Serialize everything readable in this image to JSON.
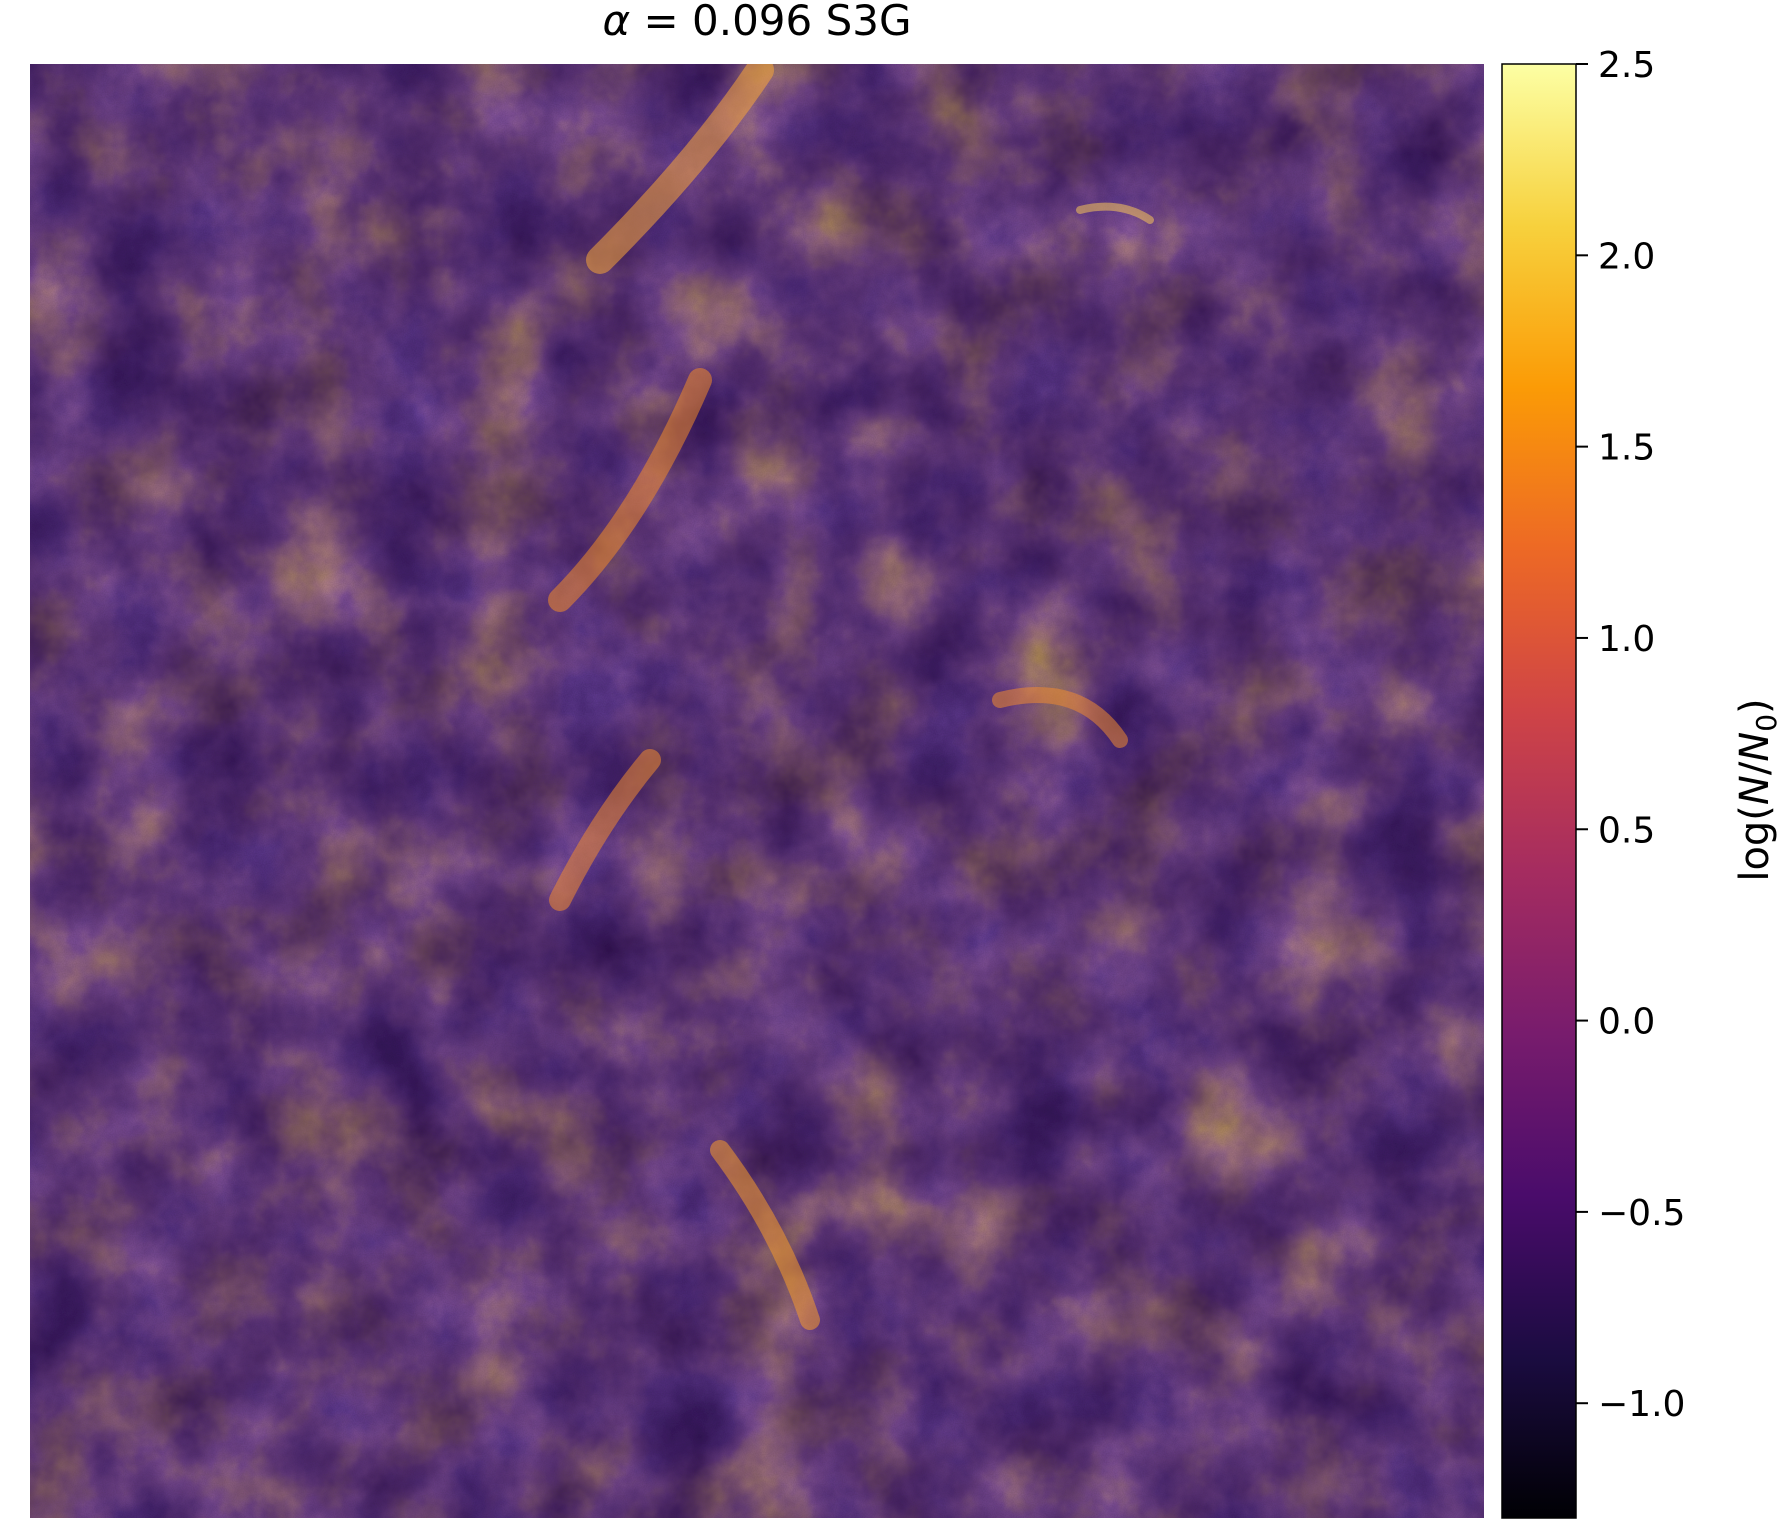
{
  "chart_data": {
    "type": "heatmap",
    "title_greek": "α",
    "title_rest": " = 0.096 S3G",
    "colorbar": {
      "label_prefix": "log(",
      "label_N": "N",
      "label_slash": "/",
      "label_N0": "N",
      "label_sub": "0",
      "label_suffix": ")",
      "colormap": "inferno",
      "range": [
        -1.3,
        2.5
      ],
      "ticks": [
        -1.0,
        -0.5,
        0.0,
        0.5,
        1.0,
        1.5,
        2.0,
        2.5
      ],
      "tick_labels": [
        "−1.0",
        "−0.5",
        "0.0",
        "0.5",
        "1.0",
        "1.5",
        "2.0",
        "2.5"
      ]
    },
    "axes_visible": false,
    "grid": false,
    "image_description_value_range": [
      -1.3,
      2.4
    ]
  },
  "colors": {
    "inferno_stops": [
      "#000004",
      "#1b0c41",
      "#4a0c6b",
      "#781c6d",
      "#a52c60",
      "#cf4446",
      "#ed6925",
      "#fb9b06",
      "#f7d13d",
      "#fcffa4"
    ]
  }
}
